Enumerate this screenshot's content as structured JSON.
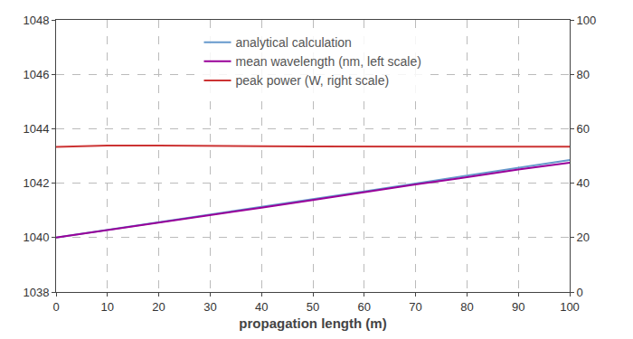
{
  "chart_data": {
    "type": "line",
    "x_label": "propagation length (m)",
    "x": [
      0,
      10,
      20,
      30,
      40,
      50,
      60,
      70,
      80,
      90,
      100
    ],
    "xlim": [
      0,
      100
    ],
    "xticks": [
      0,
      10,
      20,
      30,
      40,
      50,
      60,
      70,
      80,
      90,
      100
    ],
    "ylim": [
      1038,
      1048
    ],
    "yticks": [
      1038,
      1040,
      1042,
      1044,
      1046,
      1048
    ],
    "y2lim": [
      0,
      100
    ],
    "y2ticks": [
      0,
      20,
      40,
      60,
      80,
      100
    ],
    "grid": true,
    "legend": "upper center",
    "series": [
      {
        "name": "analytical calculation",
        "color": "#6699cc",
        "line_style": "solid",
        "values": [
          1040.0,
          1040.28,
          1040.56,
          1040.84,
          1041.12,
          1041.41,
          1041.7,
          1041.99,
          1042.28,
          1042.56,
          1042.85
        ]
      },
      {
        "name": "mean wavelength (nm, left scale)",
        "color": "#990099",
        "line_style": "solid",
        "values": [
          1040.0,
          1040.27,
          1040.55,
          1040.82,
          1041.1,
          1041.38,
          1041.67,
          1041.95,
          1042.22,
          1042.5,
          1042.75
        ]
      },
      {
        "name": "peak power (W, right scale)",
        "color": "#cc3333",
        "line_style": "solid",
        "axis": "y2",
        "values": [
          53.3,
          53.8,
          53.8,
          53.8,
          53.6,
          53.5,
          53.5,
          53.5,
          53.5,
          53.4,
          53.4
        ]
      }
    ]
  }
}
